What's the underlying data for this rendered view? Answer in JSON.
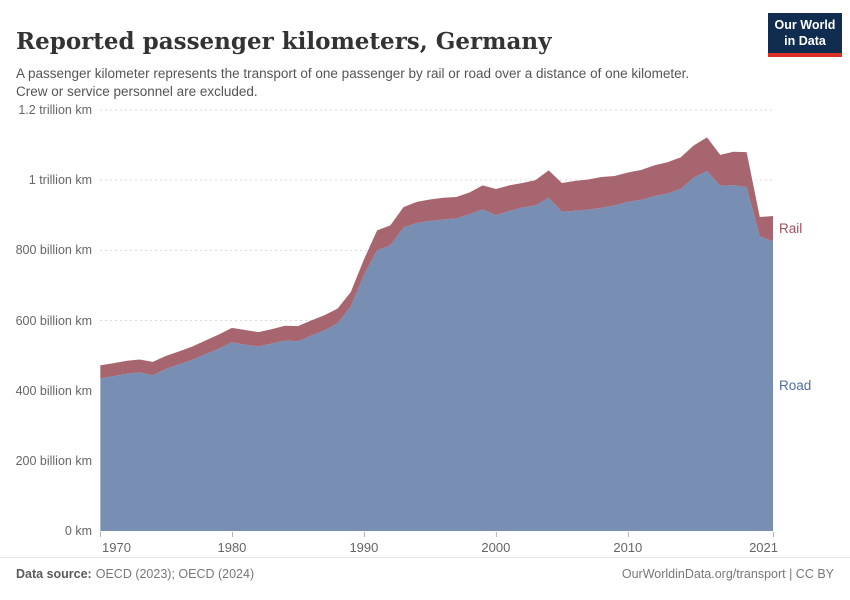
{
  "header": {
    "title": "Reported passenger kilometers, Germany",
    "subtitle": "A passenger kilometer represents the transport of one passenger by rail or road over a distance of one kilometer. Crew or service personnel are excluded.",
    "logo": {
      "line1": "Our World",
      "line2": "in Data"
    }
  },
  "chart_data": {
    "type": "area",
    "stacked": true,
    "title": "Reported passenger kilometers, Germany",
    "unit": "passenger kilometers (km)",
    "xlabel": "",
    "ylabel": "",
    "ylim": [
      0,
      1200000000000
    ],
    "ylim_billion_km": [
      0,
      1200
    ],
    "grid": "horizontal dashed",
    "legend_position": "end-of-line labels, right of plot",
    "x": [
      1970,
      1971,
      1972,
      1973,
      1974,
      1975,
      1976,
      1977,
      1978,
      1979,
      1980,
      1981,
      1982,
      1983,
      1984,
      1985,
      1986,
      1987,
      1988,
      1989,
      1990,
      1991,
      1992,
      1993,
      1994,
      1995,
      1996,
      1997,
      1998,
      1999,
      2000,
      2001,
      2002,
      2003,
      2004,
      2005,
      2006,
      2007,
      2008,
      2009,
      2010,
      2011,
      2012,
      2013,
      2014,
      2015,
      2016,
      2017,
      2018,
      2019,
      2020,
      2021
    ],
    "series": [
      {
        "name": "Road",
        "color": "#6e85ad",
        "label_color": "#4f6da8",
        "values_billion_km": [
          435,
          441,
          448,
          452,
          444,
          462,
          475,
          488,
          504,
          520,
          538,
          531,
          526,
          534,
          543,
          541,
          557,
          572,
          592,
          640,
          730,
          800,
          815,
          865,
          878,
          884,
          888,
          891,
          903,
          917,
          900,
          912,
          922,
          928,
          950,
          910,
          913,
          916,
          921,
          928,
          938,
          944,
          954,
          962,
          975,
          1008,
          1026,
          984,
          986,
          980,
          840,
          826
        ]
      },
      {
        "name": "Rail",
        "color": "#a05a64",
        "label_color": "#a1505f",
        "values_billion_km": [
          37,
          37,
          37,
          37,
          38,
          37,
          37,
          38,
          39,
          40,
          41,
          42,
          41,
          41,
          42,
          43,
          43,
          43,
          42,
          41,
          44,
          57,
          56,
          58,
          60,
          61,
          62,
          61,
          62,
          68,
          75,
          73,
          70,
          72,
          78,
          82,
          85,
          86,
          88,
          84,
          84,
          85,
          88,
          89,
          90,
          91,
          96,
          88,
          95,
          100,
          55,
          72
        ]
      }
    ],
    "yticks": [
      {
        "label": "1.2 trillion km",
        "value": 1200
      },
      {
        "label": "1 trillion km",
        "value": 1000
      },
      {
        "label": "800 billion km",
        "value": 800
      },
      {
        "label": "600 billion km",
        "value": 600
      },
      {
        "label": "400 billion km",
        "value": 400
      },
      {
        "label": "200 billion km",
        "value": 200
      },
      {
        "label": "0 km",
        "value": 0
      }
    ],
    "xticks": [
      {
        "label": "1970",
        "value": 1970
      },
      {
        "label": "1980",
        "value": 1980
      },
      {
        "label": "1990",
        "value": 1990
      },
      {
        "label": "2000",
        "value": 2000
      },
      {
        "label": "2010",
        "value": 2010
      },
      {
        "label": "2021",
        "value": 2021
      }
    ]
  },
  "footer": {
    "source_label": "Data source:",
    "source_text": "OECD (2023); OECD (2024)",
    "credit": "OurWorldinData.org/transport | CC BY"
  }
}
